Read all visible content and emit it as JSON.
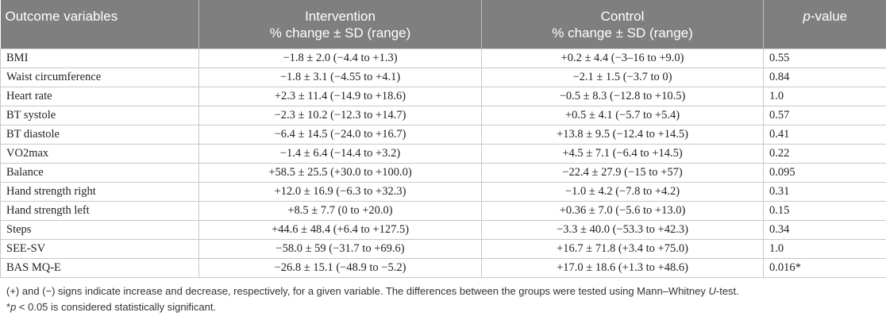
{
  "table": {
    "headers": {
      "outcome": "Outcome variables",
      "intervention_line1": "Intervention",
      "intervention_line2": "% change ± SD (range)",
      "control_line1": "Control",
      "control_line2": "% change ± SD (range)",
      "pvalue_italic": "p",
      "pvalue_rest": "-value"
    },
    "rows": [
      {
        "variable": "BMI",
        "intervention": "−1.8 ± 2.0 (−4.4 to +1.3)",
        "control": "+0.2 ± 4.4 (−3–16 to +9.0)",
        "p": "0.55"
      },
      {
        "variable": "Waist circumference",
        "intervention": "−1.8 ± 3.1 (−4.55 to +4.1)",
        "control": "−2.1 ± 1.5 (−3.7 to 0)",
        "p": "0.84"
      },
      {
        "variable": "Heart rate",
        "intervention": "+2.3 ± 11.4 (−14.9 to +18.6)",
        "control": "−0.5 ± 8.3 (−12.8 to +10.5)",
        "p": "1.0"
      },
      {
        "variable": "BT systole",
        "intervention": "−2.3 ± 10.2 (−12.3 to +14.7)",
        "control": "+0.5 ± 4.1 (−5.7 to +5.4)",
        "p": "0.57"
      },
      {
        "variable": "BT diastole",
        "intervention": "−6.4 ± 14.5 (−24.0 to +16.7)",
        "control": "+13.8 ± 9.5 (−12.4 to +14.5)",
        "p": "0.41"
      },
      {
        "variable": "VO2max",
        "intervention": "−1.4 ± 6.4 (−14.4 to +3.2)",
        "control": "+4.5 ± 7.1 (−6.4 to +14.5)",
        "p": "0.22"
      },
      {
        "variable": "Balance",
        "intervention": "+58.5 ± 25.5 (+30.0 to +100.0)",
        "control": "−22.4 ± 27.9 (−15 to +57)",
        "p": "0.095"
      },
      {
        "variable": "Hand strength right",
        "intervention": "+12.0 ± 16.9 (−6.3 to +32.3)",
        "control": "−1.0 ± 4.2 (−7.8 to +4.2)",
        "p": "0.31"
      },
      {
        "variable": "Hand strength left",
        "intervention": "+8.5 ± 7.7 (0 to +20.0)",
        "control": "+0.36 ± 7.0 (−5.6 to +13.0)",
        "p": "0.15"
      },
      {
        "variable": "Steps",
        "intervention": "+44.6 ± 48.4 (+6.4 to +127.5)",
        "control": "−3.3 ± 40.0 (−53.3 to +42.3)",
        "p": "0.34"
      },
      {
        "variable": "SEE-SV",
        "intervention": "−58.0 ± 59 (−31.7 to +69.6)",
        "control": "+16.7 ± 71.8 (+3.4 to +75.0)",
        "p": "1.0"
      },
      {
        "variable": "BAS MQ-E",
        "intervention": "−26.8 ± 15.1 (−48.9 to −5.2)",
        "control": "+17.0 ± 18.6 (+1.3 to +48.6)",
        "p": "0.016*"
      }
    ]
  },
  "footnotes": {
    "line1_before": "(+) and (−) signs indicate increase and decrease, respectively, for a given variable. The differences between the groups were tested using Mann–Whitney ",
    "line1_italic": "U",
    "line1_after": "-test.",
    "line2_star": "*",
    "line2_italic": "p",
    "line2_after": " < 0.05 is considered statistically significant."
  }
}
